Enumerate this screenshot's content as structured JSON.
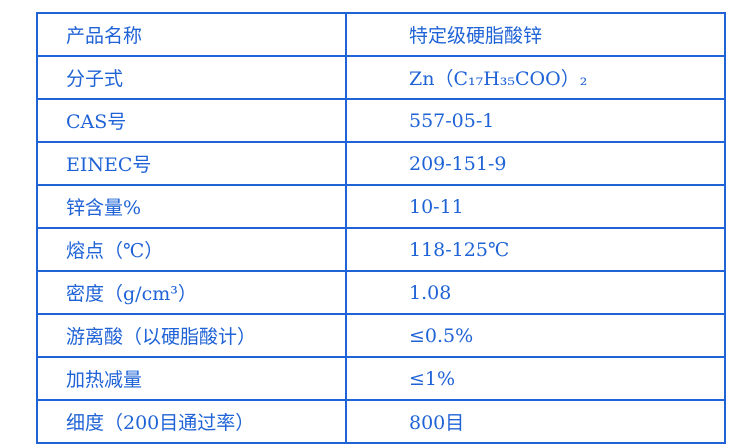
{
  "rows": [
    {
      "label": "产品名称",
      "value": "特定级硬脂酸锌"
    },
    {
      "label": "分子式",
      "value": "Zn（C₁₇H₃₅COO）₂"
    },
    {
      "label": "CAS号",
      "value": "557-05-1"
    },
    {
      "label": "EINEC号",
      "value": "209-151-9"
    },
    {
      "label": "锌含量%",
      "value": "10-11"
    },
    {
      "label": "熔点（℃）",
      "value": "118-125℃"
    },
    {
      "label": "密度（g/cm³）",
      "value": "1.08"
    },
    {
      "label": "游离酸（以硬脂酸计）",
      "value": "≤0.5%"
    },
    {
      "label": "加热减量",
      "value": "≤1%"
    },
    {
      "label": "细度（200目通过率）",
      "value": "800目"
    }
  ]
}
